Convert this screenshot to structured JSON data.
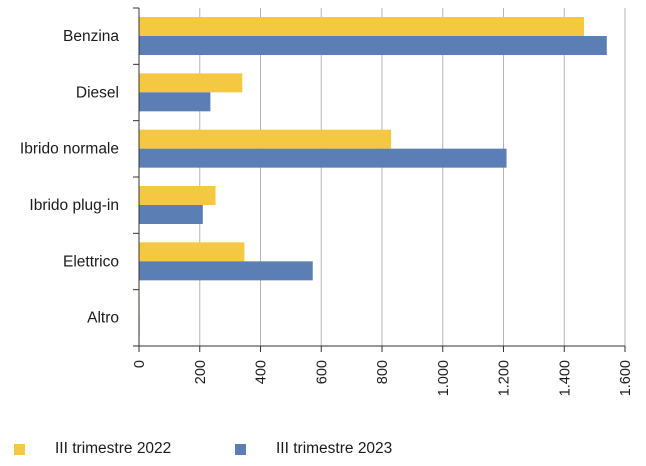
{
  "chart_data": {
    "type": "bar",
    "orientation": "horizontal",
    "categories": [
      "Benzina",
      "Diesel",
      "Ibrido normale",
      "Ibrido plug-in",
      "Elettrico",
      "Altro"
    ],
    "series": [
      {
        "name": "III trimestre 2022",
        "color": "#f5c842",
        "values": [
          1465,
          340,
          830,
          252,
          347,
          2
        ]
      },
      {
        "name": "III trimestre 2023",
        "color": "#5b7fb5",
        "values": [
          1540,
          235,
          1210,
          210,
          572,
          2
        ]
      }
    ],
    "x_ticks": [
      "0",
      "200",
      "400",
      "600",
      "800",
      "1.000",
      "1.200",
      "1.400",
      "1.600"
    ],
    "xlim": [
      0,
      1600
    ],
    "grid": "vertical",
    "legend_position": "bottom",
    "title": "",
    "xlabel": "",
    "ylabel": ""
  }
}
